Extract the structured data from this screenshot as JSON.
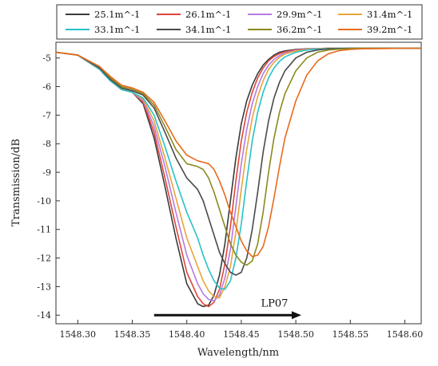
{
  "chart_data": {
    "type": "line",
    "title": "",
    "xlabel": "Wavelength/nm",
    "ylabel": "Transmission/dB",
    "xlim": [
      1548.28,
      1548.615
    ],
    "ylim": [
      -14.3,
      -4.45
    ],
    "x_ticks": [
      1548.3,
      1548.35,
      1548.4,
      1548.45,
      1548.5,
      1548.55,
      1548.6
    ],
    "x_tick_labels": [
      "1548.30",
      "1548.35",
      "1548.40",
      "1548.45",
      "1548.50",
      "1548.55",
      "1548.60"
    ],
    "y_ticks": [
      -5,
      -6,
      -7,
      -8,
      -9,
      -10,
      -11,
      -12,
      -13,
      -14
    ],
    "y_tick_labels": [
      "-5",
      "-6",
      "-7",
      "-8",
      "-9",
      "-10",
      "-11",
      "-12",
      "-13",
      "-14"
    ],
    "grid": false,
    "legend_position": "top",
    "annotation": {
      "text": "LP07",
      "arrow_from": [
        1548.37,
        -14.0
      ],
      "arrow_to": [
        1548.505,
        -14.0
      ],
      "text_at": [
        1548.468,
        -13.7
      ]
    },
    "x": [
      1548.28,
      1548.3,
      1548.32,
      1548.33,
      1548.34,
      1548.35,
      1548.36,
      1548.37,
      1548.38,
      1548.39,
      1548.4,
      1548.41,
      1548.415,
      1548.42,
      1548.425,
      1548.43,
      1548.435,
      1548.44,
      1548.445,
      1548.45,
      1548.455,
      1548.46,
      1548.465,
      1548.47,
      1548.475,
      1548.48,
      1548.485,
      1548.49,
      1548.5,
      1548.51,
      1548.52,
      1548.53,
      1548.54,
      1548.55,
      1548.56,
      1548.58,
      1548.6,
      1548.615
    ],
    "series": [
      {
        "name": "25.1m^-1",
        "color": "#3b3b3b",
        "values": [
          -4.8,
          -4.9,
          -5.4,
          -5.8,
          -6.1,
          -6.2,
          -6.6,
          -7.8,
          -9.5,
          -11.3,
          -12.9,
          -13.6,
          -13.7,
          -13.65,
          -13.3,
          -12.6,
          -11.5,
          -10.0,
          -8.5,
          -7.3,
          -6.5,
          -5.95,
          -5.55,
          -5.25,
          -5.05,
          -4.9,
          -4.8,
          -4.75,
          -4.7,
          -4.68,
          -4.67,
          -4.66,
          -4.66,
          -4.66,
          -4.66,
          -4.66,
          -4.66,
          -4.66
        ]
      },
      {
        "name": "26.1m^-1",
        "color": "#e0463a",
        "values": [
          -4.8,
          -4.9,
          -5.4,
          -5.8,
          -6.1,
          -6.2,
          -6.55,
          -7.6,
          -9.2,
          -10.9,
          -12.5,
          -13.35,
          -13.6,
          -13.7,
          -13.55,
          -13.1,
          -12.2,
          -10.9,
          -9.3,
          -7.9,
          -6.9,
          -6.2,
          -5.7,
          -5.35,
          -5.1,
          -4.95,
          -4.85,
          -4.78,
          -4.72,
          -4.69,
          -4.67,
          -4.66,
          -4.66,
          -4.66,
          -4.66,
          -4.66,
          -4.66,
          -4.66
        ]
      },
      {
        "name": "29.9m^-1",
        "color": "#b57be0",
        "values": [
          -4.8,
          -4.9,
          -5.4,
          -5.8,
          -6.1,
          -6.2,
          -6.5,
          -7.4,
          -8.8,
          -10.4,
          -11.9,
          -12.9,
          -13.25,
          -13.45,
          -13.5,
          -13.3,
          -12.7,
          -11.7,
          -10.2,
          -8.7,
          -7.5,
          -6.6,
          -6.0,
          -5.55,
          -5.25,
          -5.05,
          -4.92,
          -4.82,
          -4.73,
          -4.69,
          -4.67,
          -4.66,
          -4.66,
          -4.66,
          -4.66,
          -4.66,
          -4.66,
          -4.66
        ]
      },
      {
        "name": "31.4m^-1",
        "color": "#e8a53a",
        "values": [
          -4.8,
          -4.9,
          -5.4,
          -5.8,
          -6.1,
          -6.2,
          -6.45,
          -7.2,
          -8.5,
          -9.9,
          -11.3,
          -12.3,
          -12.8,
          -13.15,
          -13.35,
          -13.4,
          -13.0,
          -12.3,
          -11.1,
          -9.6,
          -8.2,
          -7.1,
          -6.35,
          -5.8,
          -5.4,
          -5.15,
          -4.98,
          -4.86,
          -4.75,
          -4.7,
          -4.68,
          -4.66,
          -4.66,
          -4.66,
          -4.66,
          -4.66,
          -4.66,
          -4.66
        ]
      },
      {
        "name": "33.1m^-1",
        "color": "#27c1c9",
        "values": [
          -4.8,
          -4.9,
          -5.4,
          -5.8,
          -6.1,
          -6.2,
          -6.4,
          -7.0,
          -8.1,
          -9.3,
          -10.4,
          -11.3,
          -11.9,
          -12.4,
          -12.8,
          -13.05,
          -13.1,
          -12.8,
          -12.0,
          -10.8,
          -9.3,
          -7.9,
          -6.9,
          -6.2,
          -5.7,
          -5.35,
          -5.12,
          -4.96,
          -4.8,
          -4.72,
          -4.69,
          -4.67,
          -4.66,
          -4.66,
          -4.66,
          -4.66,
          -4.66,
          -4.66
        ]
      },
      {
        "name": "34.1m^-1",
        "color": "#4a4a4a",
        "values": [
          -4.8,
          -4.9,
          -5.35,
          -5.75,
          -6.05,
          -6.15,
          -6.3,
          -6.75,
          -7.6,
          -8.5,
          -9.2,
          -9.6,
          -10.0,
          -10.6,
          -11.2,
          -11.8,
          -12.2,
          -12.5,
          -12.6,
          -12.5,
          -12.0,
          -11.0,
          -9.7,
          -8.3,
          -7.2,
          -6.4,
          -5.85,
          -5.45,
          -5.0,
          -4.8,
          -4.72,
          -4.68,
          -4.67,
          -4.66,
          -4.66,
          -4.66,
          -4.66,
          -4.66
        ]
      },
      {
        "name": "36.2m^-1",
        "color": "#8a8a1e",
        "values": [
          -4.8,
          -4.9,
          -5.3,
          -5.7,
          -6.0,
          -6.1,
          -6.25,
          -6.65,
          -7.4,
          -8.2,
          -8.7,
          -8.8,
          -8.9,
          -9.2,
          -9.7,
          -10.3,
          -10.9,
          -11.5,
          -11.9,
          -12.15,
          -12.25,
          -12.1,
          -11.5,
          -10.4,
          -9.0,
          -7.8,
          -6.9,
          -6.25,
          -5.45,
          -5.0,
          -4.8,
          -4.72,
          -4.69,
          -4.67,
          -4.66,
          -4.66,
          -4.66,
          -4.66
        ]
      },
      {
        "name": "39.2m^-1",
        "color": "#e86a1c",
        "values": [
          -4.8,
          -4.9,
          -5.3,
          -5.65,
          -5.95,
          -6.05,
          -6.2,
          -6.55,
          -7.2,
          -7.9,
          -8.4,
          -8.6,
          -8.65,
          -8.7,
          -8.9,
          -9.3,
          -9.8,
          -10.4,
          -10.9,
          -11.4,
          -11.75,
          -11.95,
          -11.9,
          -11.6,
          -10.9,
          -9.9,
          -8.8,
          -7.8,
          -6.5,
          -5.6,
          -5.1,
          -4.85,
          -4.74,
          -4.7,
          -4.68,
          -4.67,
          -4.66,
          -4.66
        ]
      }
    ]
  },
  "legend": {
    "labels": [
      "25.1m^-1",
      "26.1m^-1",
      "29.9m^-1",
      "31.4m^-1",
      "33.1m^-1",
      "34.1m^-1",
      "36.2m^-1",
      "39.2m^-1"
    ]
  }
}
